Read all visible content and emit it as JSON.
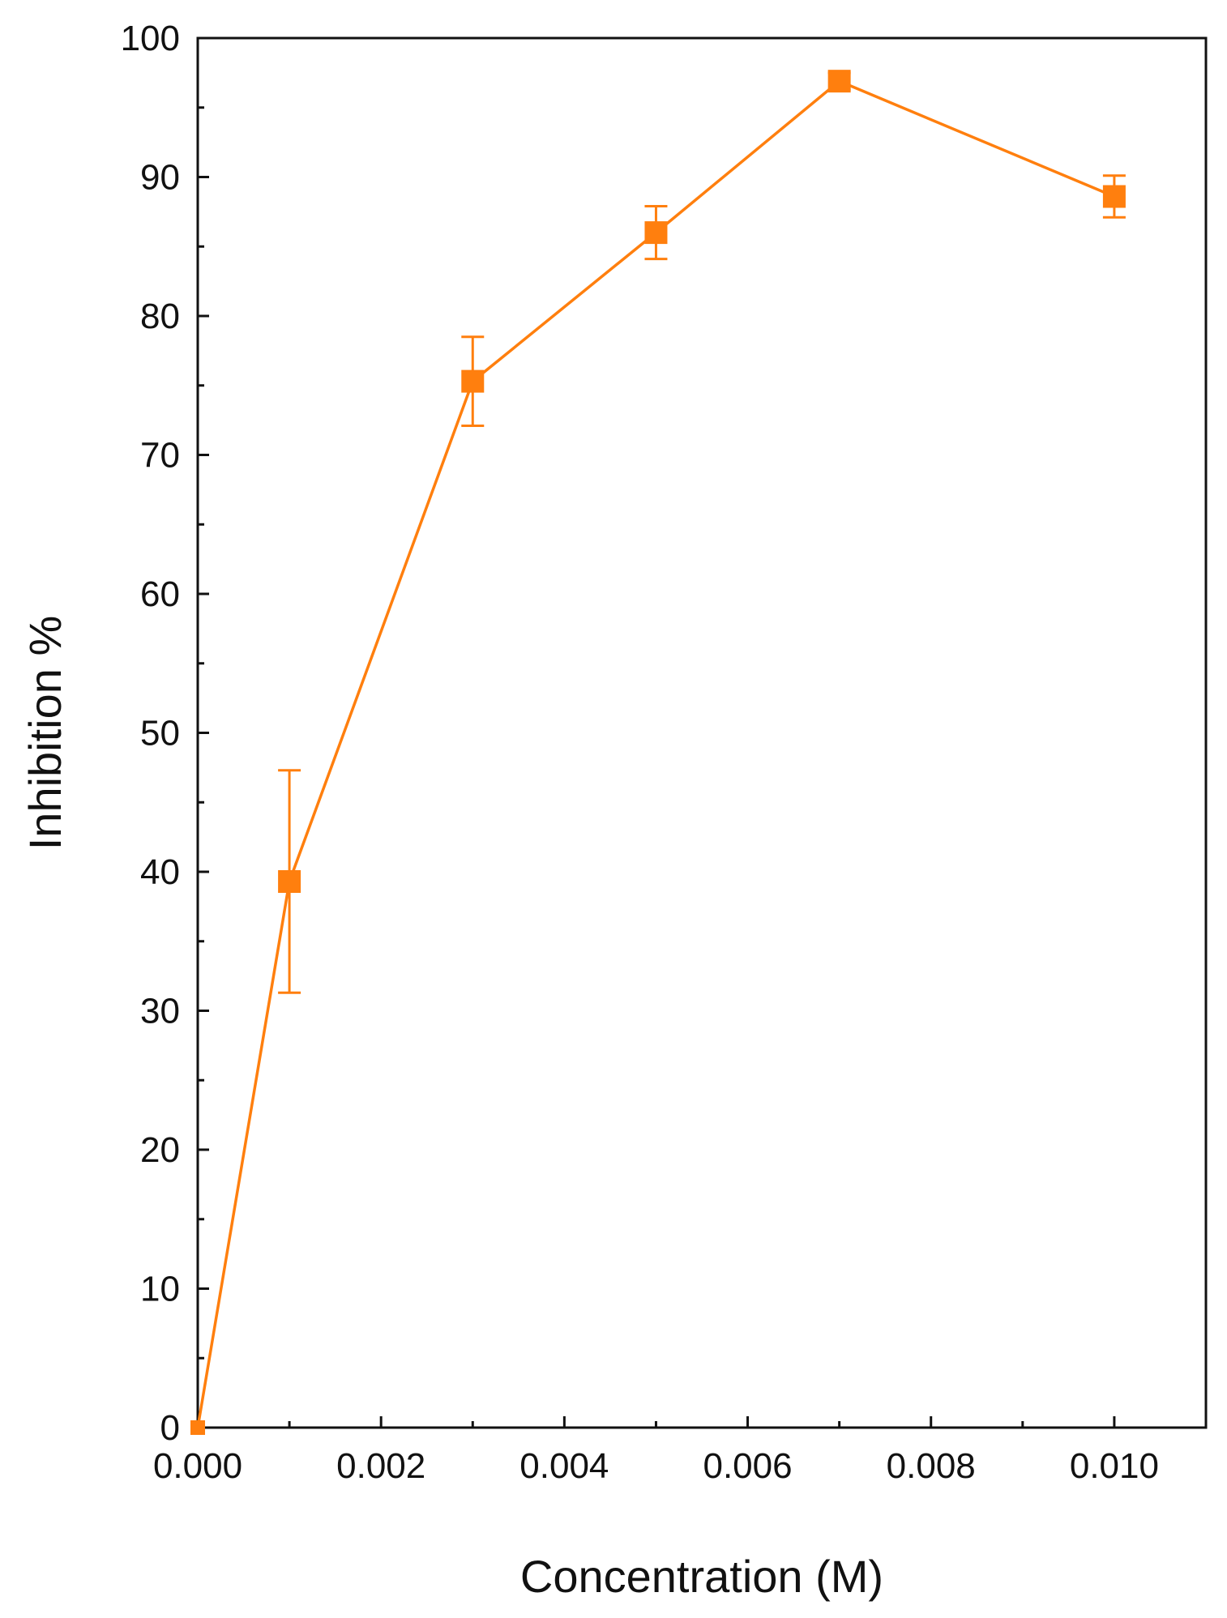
{
  "chart_data": {
    "type": "line",
    "title": "",
    "xlabel": "Concentration (M)",
    "ylabel": "Inhibition %",
    "xlim": [
      0,
      0.011
    ],
    "ylim": [
      0,
      100
    ],
    "x_ticks": [
      0,
      0.002,
      0.004,
      0.006,
      0.008,
      0.01
    ],
    "x_tick_labels": [
      "0.000",
      "0.002",
      "0.004",
      "0.006",
      "0.008",
      "0.010"
    ],
    "y_ticks": [
      0,
      10,
      20,
      30,
      40,
      50,
      60,
      70,
      80,
      90,
      100
    ],
    "y_tick_labels": [
      "0",
      "10",
      "20",
      "30",
      "40",
      "50",
      "60",
      "70",
      "80",
      "90",
      "100"
    ],
    "grid": false,
    "legend": "none",
    "color": "#ff7f0e",
    "series": [
      {
        "x": [
          0,
          0.001,
          0.003,
          0.005,
          0.007,
          0.01
        ],
        "y": [
          0,
          39.3,
          75.3,
          86.0,
          96.9,
          88.6
        ],
        "error": [
          0,
          8.0,
          3.2,
          1.9,
          0.6,
          1.5
        ]
      }
    ]
  }
}
